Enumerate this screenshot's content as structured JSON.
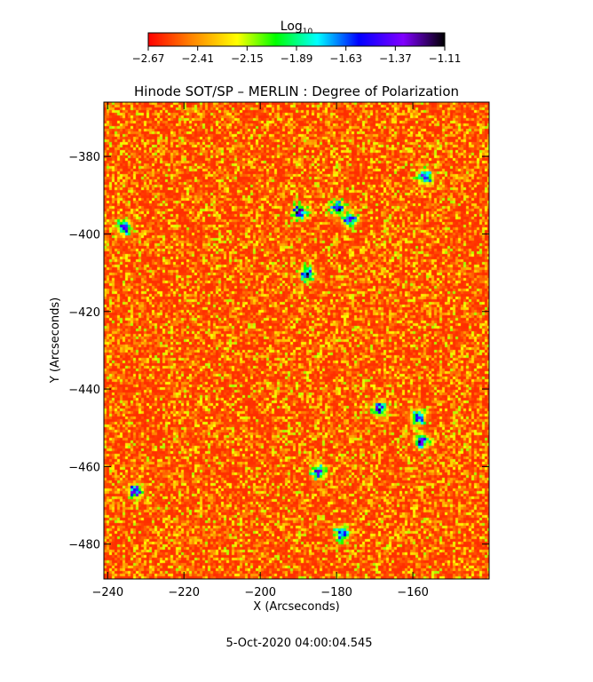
{
  "chart_data": {
    "type": "heatmap",
    "title": "Hinode SOT/SP – MERLIN : Degree of Polarization",
    "xlabel": "X (Arcseconds)",
    "ylabel": "Y (Arcseconds)",
    "xlim": [
      -241,
      -140
    ],
    "ylim": [
      -489,
      -366
    ],
    "x_ticks": [
      -240,
      -220,
      -200,
      -180,
      -160
    ],
    "y_ticks": [
      -380,
      -400,
      -420,
      -440,
      -460,
      -480
    ],
    "grid": false,
    "colorbar": {
      "label_main": "Log",
      "label_sub": "10",
      "min": -2.67,
      "max": -1.11,
      "ticks": [
        "-2.67",
        "-2.41",
        "-2.15",
        "-1.89",
        "-1.63",
        "-1.37",
        "-1.11"
      ],
      "colors": [
        "#ff0000",
        "#ff7f00",
        "#ffff00",
        "#00ff00",
        "#00ffff",
        "#0000ff",
        "#8000ff",
        "#000000"
      ]
    },
    "strong_regions": [
      {
        "x": -236,
        "y": -398
      },
      {
        "x": -190,
        "y": -394
      },
      {
        "x": -180,
        "y": -393
      },
      {
        "x": -177,
        "y": -396
      },
      {
        "x": -157,
        "y": -385
      },
      {
        "x": -169,
        "y": -445
      },
      {
        "x": -159,
        "y": -447
      },
      {
        "x": -158,
        "y": -453
      },
      {
        "x": -185,
        "y": -461
      },
      {
        "x": -179,
        "y": -477
      },
      {
        "x": -233,
        "y": -466
      },
      {
        "x": -188,
        "y": -410
      }
    ],
    "timestamp": "5-Oct-2020 04:00:04.545"
  }
}
